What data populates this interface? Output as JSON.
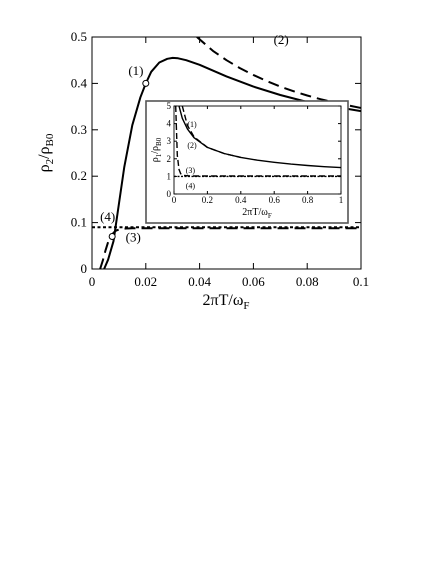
{
  "chart_data": [
    {
      "type": "line",
      "x_label": "2πT/ω",
      "x_label_sub": "F",
      "y_label": "ρ",
      "y_label_sub": "2",
      "y_label_slash": "/ρ",
      "y_label_sub2": "B0",
      "xlim": [
        0,
        0.1
      ],
      "ylim": [
        0,
        0.5
      ],
      "x_ticks": [
        0,
        0.02,
        0.04,
        0.06,
        0.08,
        0.1
      ],
      "x_tick_labels": [
        "0",
        "0.02",
        "0.04",
        "0.06",
        "0.08",
        "0.1"
      ],
      "y_ticks": [
        0,
        0.1,
        0.2,
        0.3,
        0.4,
        0.5
      ],
      "y_tick_labels": [
        "0",
        "0.1",
        "0.2",
        "0.3",
        "0.4",
        "0.5"
      ],
      "grid": false,
      "series": [
        {
          "name": "(1)",
          "style": "solid",
          "x": [
            0.0045,
            0.006,
            0.008,
            0.01,
            0.012,
            0.015,
            0.018,
            0.02,
            0.022,
            0.025,
            0.028,
            0.03,
            0.032,
            0.035,
            0.04,
            0.05,
            0.06,
            0.07,
            0.08,
            0.09,
            0.1
          ],
          "y": [
            0,
            0.02,
            0.06,
            0.14,
            0.22,
            0.31,
            0.37,
            0.4,
            0.425,
            0.445,
            0.453,
            0.455,
            0.454,
            0.45,
            0.44,
            0.415,
            0.393,
            0.375,
            0.36,
            0.35,
            0.34
          ]
        },
        {
          "name": "(2)",
          "style": "dashed",
          "x": [
            0.039,
            0.045,
            0.05,
            0.055,
            0.06,
            0.065,
            0.07,
            0.075,
            0.08,
            0.085,
            0.09,
            0.095,
            0.1
          ],
          "y": [
            0.5,
            0.47,
            0.45,
            0.433,
            0.418,
            0.405,
            0.393,
            0.383,
            0.374,
            0.366,
            0.359,
            0.353,
            0.347
          ]
        },
        {
          "name": "(3)",
          "style": "dashed",
          "x": [
            0.003,
            0.004,
            0.005,
            0.006,
            0.007,
            0.008,
            0.009,
            0.01,
            0.012,
            0.015,
            0.02,
            0.04,
            0.06,
            0.08,
            0.1
          ],
          "y": [
            0.0,
            0.018,
            0.04,
            0.058,
            0.07,
            0.078,
            0.083,
            0.085,
            0.087,
            0.088,
            0.088,
            0.088,
            0.088,
            0.088,
            0.088
          ]
        },
        {
          "name": "(4)",
          "style": "dotted",
          "x": [
            0.0,
            0.1
          ],
          "y": [
            0.09,
            0.09
          ]
        }
      ],
      "markers": [
        {
          "x": 0.02,
          "y": 0.4
        },
        {
          "x": 0.0075,
          "y": 0.07
        }
      ],
      "annotations": [
        {
          "text": "(1)",
          "x": 0.0135,
          "y": 0.418
        },
        {
          "text": "(2)",
          "x": 0.0675,
          "y": 0.485
        },
        {
          "text": "(3)",
          "x": 0.0125,
          "y": 0.059
        },
        {
          "text": "(4)",
          "x": 0.003,
          "y": 0.103
        }
      ]
    },
    {
      "type": "line",
      "x_label": "2πT/ω",
      "x_label_sub": "F",
      "y_label": "ρ",
      "y_label_sub": "1",
      "y_label_slash": "/ρ",
      "y_label_sub2": "B0",
      "xlim": [
        0,
        1
      ],
      "ylim": [
        0,
        5
      ],
      "x_ticks": [
        0,
        0.2,
        0.4,
        0.6,
        0.8,
        1
      ],
      "x_tick_labels": [
        "0",
        "0.2",
        "0.4",
        "0.6",
        "0.8",
        "1"
      ],
      "y_ticks": [
        0,
        1,
        2,
        3,
        4,
        5
      ],
      "y_tick_labels": [
        "0",
        "1",
        "2",
        "3",
        "4",
        "5"
      ],
      "series": [
        {
          "name": "(1)",
          "style": "solid",
          "x": [
            0.03,
            0.05,
            0.08,
            0.12,
            0.2,
            0.3,
            0.4,
            0.5,
            0.6,
            0.7,
            0.8,
            0.9,
            1.0
          ],
          "y": [
            5.0,
            4.3,
            3.7,
            3.2,
            2.65,
            2.3,
            2.08,
            1.92,
            1.8,
            1.7,
            1.62,
            1.55,
            1.5
          ]
        },
        {
          "name": "(2)",
          "style": "dashed",
          "x": [
            0.05,
            0.08,
            0.12,
            0.2,
            0.3,
            0.4
          ],
          "y": [
            5.0,
            3.9,
            3.25,
            2.65,
            2.3,
            2.08
          ]
        },
        {
          "name": "(3)",
          "style": "dashed",
          "x": [
            0.01,
            0.02,
            0.03,
            0.04,
            0.06,
            0.1,
            0.2,
            1.0
          ],
          "y": [
            5.0,
            2.2,
            1.4,
            1.15,
            1.05,
            1.02,
            1.02,
            1.02
          ]
        },
        {
          "name": "(4)",
          "style": "dotted",
          "x": [
            0.0,
            1.0
          ],
          "y": [
            1.0,
            1.0
          ]
        }
      ],
      "annotations": [
        {
          "text": "(1)",
          "x": 0.08,
          "y": 3.8
        },
        {
          "text": "(2)",
          "x": 0.08,
          "y": 2.6
        },
        {
          "text": "(3)",
          "x": 0.07,
          "y": 1.2
        },
        {
          "text": "(4)",
          "x": 0.07,
          "y": 0.3
        }
      ]
    }
  ]
}
